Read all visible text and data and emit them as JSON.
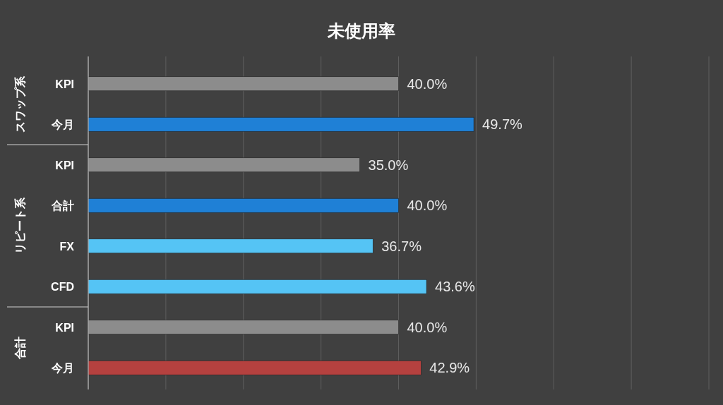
{
  "chart_data": {
    "type": "bar",
    "orientation": "horizontal",
    "title": "未使用率",
    "categories": [
      "KPI",
      "今月",
      "KPI",
      "合計",
      "FX",
      "CFD",
      "KPI",
      "今月"
    ],
    "series": [
      {
        "color": "#8c8c8c",
        "values": [
          40.0,
          null,
          35.0,
          null,
          null,
          null,
          40.0,
          null
        ],
        "value_labels": [
          "40.0%",
          null,
          "35.0%",
          null,
          null,
          null,
          "40.0%",
          null
        ]
      },
      {
        "color": "#1f80d6",
        "values": [
          null,
          49.7,
          null,
          40.0,
          null,
          null,
          null,
          null
        ],
        "value_labels": [
          null,
          "49.7%",
          null,
          "40.0%",
          null,
          null,
          null,
          null
        ]
      },
      {
        "color": "#55c4f5",
        "values": [
          null,
          null,
          null,
          null,
          36.7,
          43.6,
          null,
          null
        ],
        "value_labels": [
          null,
          null,
          null,
          null,
          "36.7%",
          "43.6%",
          null,
          null
        ]
      },
      {
        "color": "#b5413f",
        "values": [
          null,
          null,
          null,
          null,
          null,
          null,
          null,
          42.9
        ],
        "value_labels": [
          null,
          null,
          null,
          null,
          null,
          null,
          null,
          "42.9%"
        ]
      }
    ],
    "annotations": [
      "スワップ系",
      "リピート系",
      "合計"
    ],
    "xlim": [
      0,
      80
    ],
    "xticks": [
      {
        "value": 0,
        "label": null
      },
      {
        "value": 10,
        "label": null
      },
      {
        "value": 20,
        "label": null
      },
      {
        "value": 30,
        "label": null
      },
      {
        "value": 40,
        "label": null
      },
      {
        "value": 50,
        "label": null
      },
      {
        "value": 60,
        "label": null
      },
      {
        "value": 70,
        "label": null
      },
      {
        "value": 80,
        "label": null
      }
    ],
    "tick_labels": "y",
    "grid": "x"
  }
}
